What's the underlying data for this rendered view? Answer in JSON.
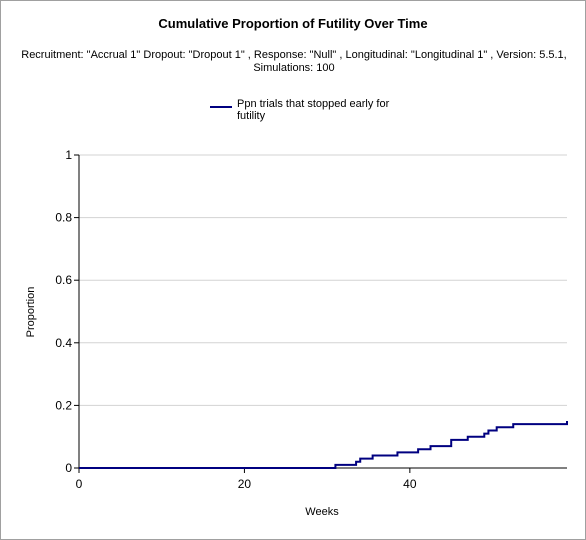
{
  "chart_data": {
    "type": "line",
    "title": "Cumulative Proportion of Futility Over Time",
    "subtitle_lines": [
      "Recruitment: \"Accrual 1\" Dropout: \"Dropout 1\" , Response: \"Null\" , Longitudinal: \"Longitudinal 1\" , Version: 5.5.1,",
      "Simulations: 100"
    ],
    "xlabel": "Weeks",
    "ylabel": "Proportion",
    "xlim": [
      0,
      59
    ],
    "ylim": [
      0,
      1
    ],
    "x_ticks": [
      0,
      20,
      40
    ],
    "y_ticks": [
      0,
      0.2,
      0.4,
      0.6,
      0.8,
      1
    ],
    "y_tick_labels": [
      "0",
      "0.2",
      "0.4",
      "0.6",
      "0.8",
      "1"
    ],
    "grid": true,
    "legend_position": "top-center",
    "colors": {
      "series": "#000080",
      "grid": "#d3d3d3",
      "axis": "#000000"
    },
    "series": [
      {
        "name": "Ppn trials that stopped early for futility",
        "step": true,
        "x": [
          0,
          31,
          33.5,
          34,
          35.5,
          38.5,
          41,
          42.5,
          45,
          47,
          49,
          49.5,
          50.5,
          52.5,
          59
        ],
        "y": [
          0,
          0.01,
          0.02,
          0.03,
          0.04,
          0.05,
          0.06,
          0.07,
          0.09,
          0.1,
          0.11,
          0.12,
          0.13,
          0.14,
          0.15
        ]
      }
    ]
  }
}
